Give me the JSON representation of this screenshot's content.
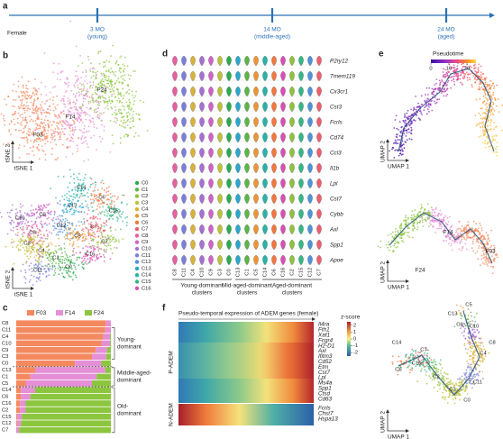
{
  "panel_labels": [
    "a",
    "b",
    "c",
    "d",
    "e",
    "f"
  ],
  "timeline": {
    "sex": "Female",
    "ages": [
      [
        "3 MO",
        "(young)"
      ],
      [
        "14 MO",
        "(middle-aged)"
      ],
      [
        "24 MO",
        "(aged)"
      ]
    ]
  },
  "tsne": {
    "samples": [
      {
        "name": "F03",
        "color": "#f4895f"
      },
      {
        "name": "F14",
        "color": "#e48fd6"
      },
      {
        "name": "F24",
        "color": "#8cc63f"
      }
    ],
    "y_label": "tSNE 2",
    "x_label": "tSNE 1"
  },
  "clusters": [
    {
      "name": "C0",
      "color": "#2bab4e"
    },
    {
      "name": "C1",
      "color": "#5bb645"
    },
    {
      "name": "C2",
      "color": "#8fc23d"
    },
    {
      "name": "C3",
      "color": "#bcc23a"
    },
    {
      "name": "C4",
      "color": "#d9b23a"
    },
    {
      "name": "C5",
      "color": "#eb9534"
    },
    {
      "name": "C6",
      "color": "#f2773f"
    },
    {
      "name": "C7",
      "color": "#ec5f6e"
    },
    {
      "name": "C8",
      "color": "#e5609f"
    },
    {
      "name": "C9",
      "color": "#cf63c6"
    },
    {
      "name": "C10",
      "color": "#a66fd6"
    },
    {
      "name": "C11",
      "color": "#7b7fdb"
    },
    {
      "name": "C12",
      "color": "#4d93d8"
    },
    {
      "name": "C13",
      "color": "#2ba7cc"
    },
    {
      "name": "C14",
      "color": "#27b3a8"
    },
    {
      "name": "C15",
      "color": "#33b784"
    },
    {
      "name": "C16",
      "color": "#d94fb5"
    }
  ],
  "proportions": {
    "rows": [
      {
        "name": "C8",
        "values": [
          95,
          5,
          0
        ]
      },
      {
        "name": "C11",
        "values": [
          94,
          6,
          0
        ]
      },
      {
        "name": "C4",
        "values": [
          92,
          7,
          1
        ]
      },
      {
        "name": "C10",
        "values": [
          90,
          9,
          1
        ]
      },
      {
        "name": "C9",
        "values": [
          84,
          12,
          4
        ]
      },
      {
        "name": "C3",
        "values": [
          80,
          15,
          5
        ]
      },
      {
        "name": "C0",
        "values": [
          62,
          28,
          10
        ]
      },
      {
        "name": "C13",
        "values": [
          20,
          74,
          6
        ]
      },
      {
        "name": "C1",
        "values": [
          15,
          70,
          15
        ]
      },
      {
        "name": "C5",
        "values": [
          10,
          70,
          20
        ]
      },
      {
        "name": "C14",
        "values": [
          5,
          15,
          80
        ]
      },
      {
        "name": "C6",
        "values": [
          5,
          10,
          85
        ]
      },
      {
        "name": "C16",
        "values": [
          4,
          6,
          90
        ]
      },
      {
        "name": "C2",
        "values": [
          4,
          6,
          90
        ]
      },
      {
        "name": "C15",
        "values": [
          1,
          5,
          94
        ]
      },
      {
        "name": "C12",
        "values": [
          1,
          4,
          95
        ]
      },
      {
        "name": "C7",
        "values": [
          0,
          3,
          97
        ]
      }
    ],
    "groups": [
      [
        "Young-",
        "dominant"
      ],
      [
        "Middle-aged-",
        "dominant"
      ],
      [
        "Old-",
        "dominant"
      ]
    ]
  },
  "violin": {
    "genes": [
      "P2ry12",
      "Tmem119",
      "Cx3cr1",
      "Cst3",
      "Fcrls",
      "Cd74",
      "Ccl3",
      "Il1b",
      "Lpl",
      "Cst7",
      "Cybb",
      "Axl",
      "Spp1",
      "Apoe"
    ],
    "clusters": [
      "C8",
      "C11",
      "C4",
      "C10",
      "C9",
      "C3",
      "C0",
      "C13",
      "C1",
      "C5",
      "C14",
      "C6",
      "C16",
      "C2",
      "C15",
      "C12",
      "C7"
    ],
    "groups": [
      [
        "Young-dominant",
        "clusters"
      ],
      [
        "Mid-aged-dominant",
        "clusters"
      ],
      [
        "Aged-dominant",
        "clusters"
      ]
    ]
  },
  "umap": {
    "pseudotime_title": "Pseudotime",
    "pseudotime_ticks": [
      0,
      10,
      20
    ],
    "pseudotime_lim": [
      0,
      25
    ],
    "y_label": "UMAP 2",
    "x_label": "UMAP 1"
  },
  "heatmap": {
    "title": "Pseudo-temporal expression of ADEM genes (female)",
    "legend_title": "z-score",
    "legend_ticks": [
      2,
      1,
      0,
      -1,
      -2
    ],
    "legend_lim": [
      -2.5,
      2.5
    ],
    "modules": [
      "P-ADEM",
      "N-ADEM"
    ],
    "p_genes": [
      "Il4ra",
      "Fth1",
      "Xaf1",
      "Fcgr4",
      "H2-D1",
      "Axl",
      "Ifitm3",
      "Cd52",
      "Etm",
      "Cst7",
      "Lpl",
      "Ms4a",
      "Spp1",
      "Ctsd",
      "Cd63"
    ],
    "n_genes": [
      "Fcrls",
      "Chst7",
      "Hspa13"
    ]
  }
}
